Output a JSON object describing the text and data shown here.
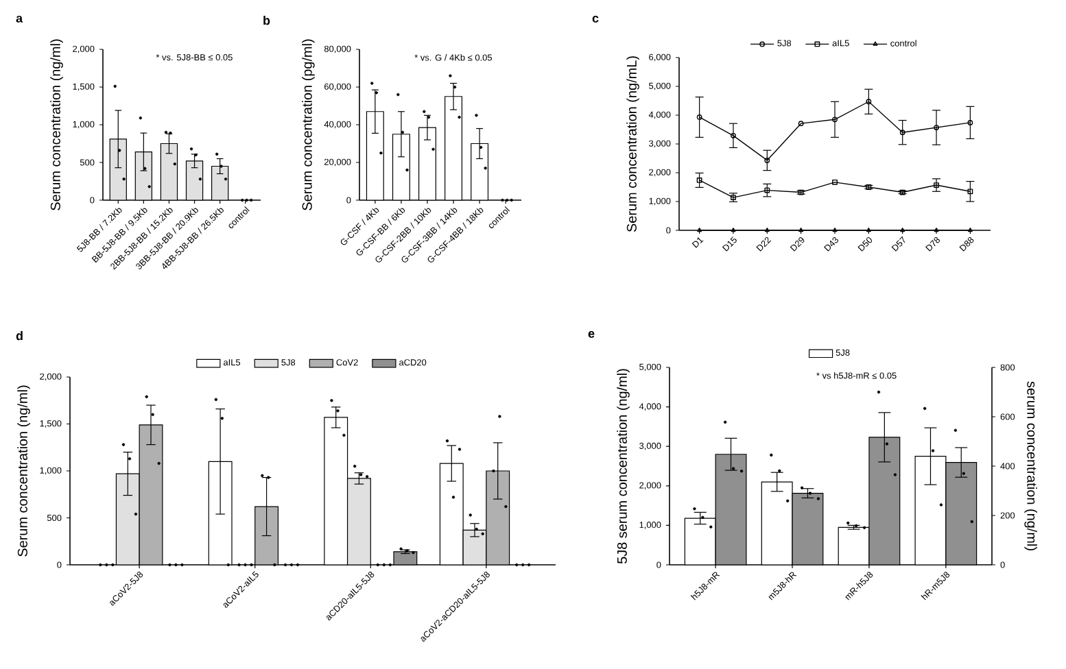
{
  "chart_data": [
    {
      "type": "bar",
      "title": "a",
      "ylabel": "Serum concentration (ng/ml)",
      "annotations": [
        "* vs. 5J8-BB ≤ 0.05"
      ],
      "categories": [
        "5J8-BB / 7.2Kb",
        "BB-5J8-BB / 9.5Kb",
        "2BB-5J8-BB / 15.2Kb",
        "3BB-5J8-BB / 20.9Kb",
        "4BB-5J8-BB / 26.5Kb",
        "control"
      ],
      "ylim": [
        0,
        2000
      ],
      "yticks": [
        0,
        500,
        {
          "value": 1000,
          "label": "1,000"
        },
        {
          "value": 1500,
          "label": "1,500"
        },
        {
          "value": 2000,
          "label": "2,000"
        }
      ],
      "series": [
        {
          "color": "#e0e0e0",
          "values": [
            810,
            640,
            750,
            520,
            450,
            null
          ],
          "errors": [
            380,
            250,
            130,
            90,
            100,
            null
          ]
        },
        {
          "type": "scatter",
          "color": "#000000",
          "x": [
            "5J8-BB / 7.2Kb",
            "5J8-BB / 7.2Kb",
            "5J8-BB / 7.2Kb",
            "BB-5J8-BB / 9.5Kb",
            "BB-5J8-BB / 9.5Kb",
            "BB-5J8-BB / 9.5Kb",
            "2BB-5J8-BB / 15.2Kb",
            "2BB-5J8-BB / 15.2Kb",
            "2BB-5J8-BB / 15.2Kb",
            "3BB-5J8-BB / 20.9Kb",
            "3BB-5J8-BB / 20.9Kb",
            "3BB-5J8-BB / 20.9Kb",
            "4BB-5J8-BB / 26.5Kb",
            "4BB-5J8-BB / 26.5Kb",
            "4BB-5J8-BB / 26.5Kb",
            "control",
            "control",
            "control"
          ],
          "values": [
            1510,
            660,
            280,
            1090,
            420,
            180,
            900,
            890,
            480,
            680,
            600,
            280,
            610,
            450,
            280,
            0,
            0,
            0
          ]
        }
      ]
    },
    {
      "type": "bar",
      "title": "b",
      "ylabel": "Serum concentration (pg/ml)",
      "annotations": [
        "* vs. G / 4Kb ≤ 0.05"
      ],
      "categories": [
        "G-CSF / 4Kb",
        "G-CSF-BB / 6Kb",
        "G-CSF-2BB / 10Kb",
        "G-CSF-3BB / 14Kb",
        "G-CSF-4BB / 18Kb",
        "control"
      ],
      "ylim": [
        0,
        80000
      ],
      "yticks": [
        0,
        {
          "value": 20000,
          "label": "20,000"
        },
        {
          "value": 40000,
          "label": "40,000"
        },
        {
          "value": 60000,
          "label": "60,000"
        },
        {
          "value": 80000,
          "label": "80,000"
        }
      ],
      "series": [
        {
          "color": "#ffffff",
          "values": [
            47000,
            35000,
            38500,
            55000,
            30000,
            null
          ],
          "errors": [
            11500,
            12000,
            6500,
            7000,
            8000,
            null
          ]
        },
        {
          "type": "scatter",
          "color": "#000000",
          "x": [
            "G-CSF / 4Kb",
            "G-CSF / 4Kb",
            "G-CSF / 4Kb",
            "G-CSF-BB / 6Kb",
            "G-CSF-BB / 6Kb",
            "G-CSF-BB / 6Kb",
            "G-CSF-2BB / 10Kb",
            "G-CSF-2BB / 10Kb",
            "G-CSF-2BB / 10Kb",
            "G-CSF-3BB / 14Kb",
            "G-CSF-3BB / 14Kb",
            "G-CSF-3BB / 14Kb",
            "G-CSF-4BB / 18Kb",
            "G-CSF-4BB / 18Kb",
            "G-CSF-4BB / 18Kb",
            "control",
            "control",
            "control"
          ],
          "values": [
            62000,
            57000,
            25000,
            56000,
            36000,
            16000,
            47000,
            44000,
            27000,
            66000,
            60000,
            44000,
            45000,
            28000,
            17000,
            0,
            0,
            0
          ]
        }
      ]
    },
    {
      "type": "line",
      "title": "c",
      "ylabel": "Serum concentration (ng/mL)",
      "legend": "top",
      "categories": [
        "D1",
        "D15",
        "D22",
        "D29",
        "D43",
        "D50",
        "D57",
        "D78",
        "D88"
      ],
      "ylim": [
        0,
        6000
      ],
      "yticks": [
        0,
        {
          "value": 1000,
          "label": "1,000"
        },
        {
          "value": 2000,
          "label": "2,000"
        },
        {
          "value": 3000,
          "label": "3,000"
        },
        {
          "value": 4000,
          "label": "4,000"
        },
        {
          "value": 5000,
          "label": "5,000"
        },
        {
          "value": 6000,
          "label": "6,000"
        }
      ],
      "series": [
        {
          "name": "5J8",
          "color": "#000000",
          "marker": "circle",
          "values": [
            3930,
            3290,
            2430,
            3710,
            3850,
            4470,
            3400,
            3570,
            3740
          ],
          "errors": [
            700,
            420,
            350,
            null,
            620,
            430,
            420,
            600,
            560
          ]
        },
        {
          "name": "aIL5",
          "color": "#000000",
          "marker": "square",
          "values": [
            1740,
            1140,
            1390,
            1320,
            1670,
            1500,
            1320,
            1570,
            1350
          ],
          "errors": [
            250,
            150,
            220,
            60,
            null,
            60,
            50,
            220,
            350
          ]
        },
        {
          "name": "control",
          "color": "#000000",
          "marker": "triangle",
          "values": [
            0,
            0,
            0,
            0,
            0,
            0,
            0,
            0,
            0
          ]
        }
      ]
    },
    {
      "type": "bar",
      "title": "d",
      "ylabel": "Serum concentration (ng/ml)",
      "legend": "top",
      "categories": [
        "aCoV2-5J8",
        "aCoV2-aIL5",
        "aCD20-aIL5-5J8",
        "aCoV2-aCD20-aIL5-5J8"
      ],
      "ylim": [
        0,
        2000
      ],
      "yticks": [
        0,
        500,
        {
          "value": 1000,
          "label": "1,000"
        },
        {
          "value": 1500,
          "label": "1,500"
        },
        {
          "value": 2000,
          "label": "2,000"
        }
      ],
      "series": [
        {
          "name": "aIL5",
          "color": "#ffffff",
          "values": [
            null,
            1100,
            1570,
            1080
          ],
          "errors": [
            null,
            560,
            110,
            190
          ]
        },
        {
          "name": "5J8",
          "color": "#e0e0e0",
          "values": [
            970,
            null,
            920,
            370
          ],
          "errors": [
            230,
            null,
            60,
            70
          ]
        },
        {
          "name": "CoV2",
          "color": "#b0b0b0",
          "values": [
            1490,
            620,
            null,
            1000
          ],
          "errors": [
            210,
            310,
            null,
            300
          ]
        },
        {
          "name": "aCD20",
          "color": "#909090",
          "values": [
            null,
            null,
            140,
            null
          ],
          "errors": [
            null,
            null,
            20,
            null
          ]
        },
        {
          "type": "scatter",
          "color": "#000000",
          "x": [
            "aCoV2-5J8",
            "aCoV2-5J8",
            "aCoV2-5J8",
            "aCoV2-aIL5",
            "aCoV2-aIL5",
            "aCoV2-aIL5",
            "aCD20-aIL5-5J8",
            "aCD20-aIL5-5J8",
            "aCD20-aIL5-5J8",
            "aCoV2-aCD20-aIL5-5J8",
            "aCoV2-aCD20-aIL5-5J8",
            "aCoV2-aCD20-aIL5-5J8"
          ],
          "values": [
            0,
            0,
            0,
            1760,
            1560,
            0,
            1750,
            1640,
            1380,
            1320,
            720,
            1230
          ]
        },
        {
          "type": "scatter",
          "color": "#000000",
          "x": [
            "aCoV2-5J8",
            "aCoV2-5J8",
            "aCoV2-5J8",
            "aCoV2-aIL5",
            "aCoV2-aIL5",
            "aCoV2-aIL5",
            "aCD20-aIL5-5J8",
            "aCD20-aIL5-5J8",
            "aCD20-aIL5-5J8",
            "aCoV2-aCD20-aIL5-5J8",
            "aCoV2-aCD20-aIL5-5J8",
            "aCoV2-aCD20-aIL5-5J8"
          ],
          "values": [
            1280,
            1130,
            540,
            0,
            0,
            0,
            1050,
            960,
            940,
            530,
            380,
            330
          ]
        },
        {
          "type": "scatter",
          "color": "#000000",
          "x": [
            "aCoV2-5J8",
            "aCoV2-5J8",
            "aCoV2-5J8",
            "aCoV2-aIL5",
            "aCoV2-aIL5",
            "aCoV2-aIL5",
            "aCD20-aIL5-5J8",
            "aCD20-aIL5-5J8",
            "aCD20-aIL5-5J8",
            "aCoV2-aCD20-aIL5-5J8",
            "aCoV2-aCD20-aIL5-5J8",
            "aCoV2-aCD20-aIL5-5J8"
          ],
          "values": [
            1790,
            1600,
            1080,
            950,
            930,
            0,
            0,
            0,
            0,
            1000,
            1580,
            620
          ]
        },
        {
          "type": "scatter",
          "color": "#000000",
          "x": [
            "aCoV2-5J8",
            "aCoV2-5J8",
            "aCoV2-5J8",
            "aCoV2-aIL5",
            "aCoV2-aIL5",
            "aCoV2-aIL5",
            "aCD20-aIL5-5J8",
            "aCD20-aIL5-5J8",
            "aCD20-aIL5-5J8",
            "aCoV2-aCD20-aIL5-5J8",
            "aCoV2-aCD20-aIL5-5J8",
            "aCoV2-aCD20-aIL5-5J8"
          ],
          "values": [
            0,
            0,
            0,
            0,
            0,
            0,
            170,
            150,
            130,
            0,
            0,
            0
          ]
        }
      ]
    },
    {
      "type": "bar",
      "title": "e",
      "ylabel": "5J8 serum concentration (ng/ml)",
      "y2label": "serum concentration (ng/ml)",
      "legend": "top",
      "annotations": [
        "* vs h5J8-mR ≤ 0.05"
      ],
      "categories": [
        "h5J8-mR",
        "m5J8-hR",
        "mR-h5J8",
        "hR-m5J8"
      ],
      "ylim": [
        0,
        5000
      ],
      "yticks": [
        0,
        {
          "value": 1000,
          "label": "1,000"
        },
        {
          "value": 2000,
          "label": "2,000"
        },
        {
          "value": 3000,
          "label": "3,000"
        },
        {
          "value": 4000,
          "label": "4,000"
        },
        {
          "value": 5000,
          "label": "5,000"
        }
      ],
      "y2lim": [
        0,
        800
      ],
      "y2ticks": [
        0,
        200,
        400,
        600,
        800
      ],
      "series": [
        {
          "name": "5J8",
          "color": "#ffffff",
          "values": [
            1180,
            2100,
            950,
            2750
          ],
          "errors": [
            150,
            240,
            50,
            720
          ]
        },
        {
          "axis": "y2",
          "color": "#909090",
          "values": [
            448,
            290,
            517,
            415
          ],
          "errors": [
            65,
            19,
            100,
            60
          ]
        },
        {
          "type": "scatter",
          "color": "#000000",
          "x": [
            "h5J8-mR",
            "h5J8-mR",
            "h5J8-mR",
            "m5J8-hR",
            "m5J8-hR",
            "m5J8-hR",
            "mR-h5J8",
            "mR-h5J8",
            "mR-h5J8",
            "hR-m5J8",
            "hR-m5J8",
            "hR-m5J8"
          ],
          "values": [
            1420,
            1200,
            960,
            2780,
            2380,
            1620,
            1060,
            990,
            940,
            3960,
            2890,
            1520
          ]
        },
        {
          "type": "scatter",
          "axis": "y2",
          "color": "#000000",
          "x": [
            "h5J8-mR",
            "h5J8-mR",
            "h5J8-mR",
            "m5J8-hR",
            "m5J8-hR",
            "m5J8-hR",
            "mR-h5J8",
            "mR-h5J8",
            "mR-h5J8",
            "hR-m5J8",
            "hR-m5J8",
            "hR-m5J8"
          ],
          "values": [
            578,
            390,
            380,
            312,
            290,
            268,
            700,
            490,
            365,
            545,
            370,
            175
          ]
        }
      ]
    }
  ]
}
